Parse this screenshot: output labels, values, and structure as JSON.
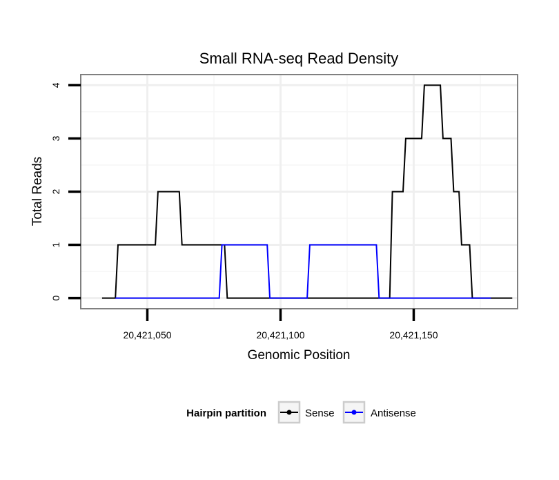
{
  "chart_data": {
    "type": "line",
    "title": "Small RNA-seq Read Density",
    "xlabel": "Genomic Position",
    "ylabel": "Total Reads",
    "xlim": [
      20421025,
      20421189
    ],
    "ylim": [
      -0.2,
      4.2
    ],
    "x_ticks": [
      20421050,
      20421100,
      20421150
    ],
    "x_tick_labels": [
      "20,421,050",
      "20,421,100",
      "20,421,150"
    ],
    "y_ticks": [
      0,
      1,
      2,
      3,
      4
    ],
    "y_tick_labels": [
      "0",
      "1",
      "2",
      "3",
      "4"
    ],
    "grid": true,
    "legend": {
      "title": "Hairpin partition",
      "position": "bottom"
    },
    "series": [
      {
        "name": "Sense",
        "color": "#000000",
        "x": [
          20421033,
          20421038,
          20421039,
          20421053,
          20421054,
          20421062,
          20421063,
          20421079,
          20421080,
          20421141,
          20421142,
          20421146,
          20421147,
          20421153,
          20421154,
          20421160,
          20421161,
          20421164,
          20421165,
          20421167,
          20421168,
          20421171,
          20421172,
          20421175,
          20421176,
          20421187
        ],
        "y": [
          0,
          0,
          1,
          1,
          2,
          2,
          1,
          1,
          0,
          0,
          2,
          2,
          3,
          3,
          4,
          4,
          3,
          3,
          2,
          2,
          1,
          1,
          0,
          0,
          0,
          0
        ]
      },
      {
        "name": "Antisense",
        "color": "#0000ff",
        "x": [
          20421038,
          20421077,
          20421078,
          20421095,
          20421096,
          20421110,
          20421111,
          20421136,
          20421137,
          20421179
        ],
        "y": [
          0,
          0,
          1,
          1,
          0,
          0,
          1,
          1,
          0,
          0
        ]
      }
    ]
  }
}
